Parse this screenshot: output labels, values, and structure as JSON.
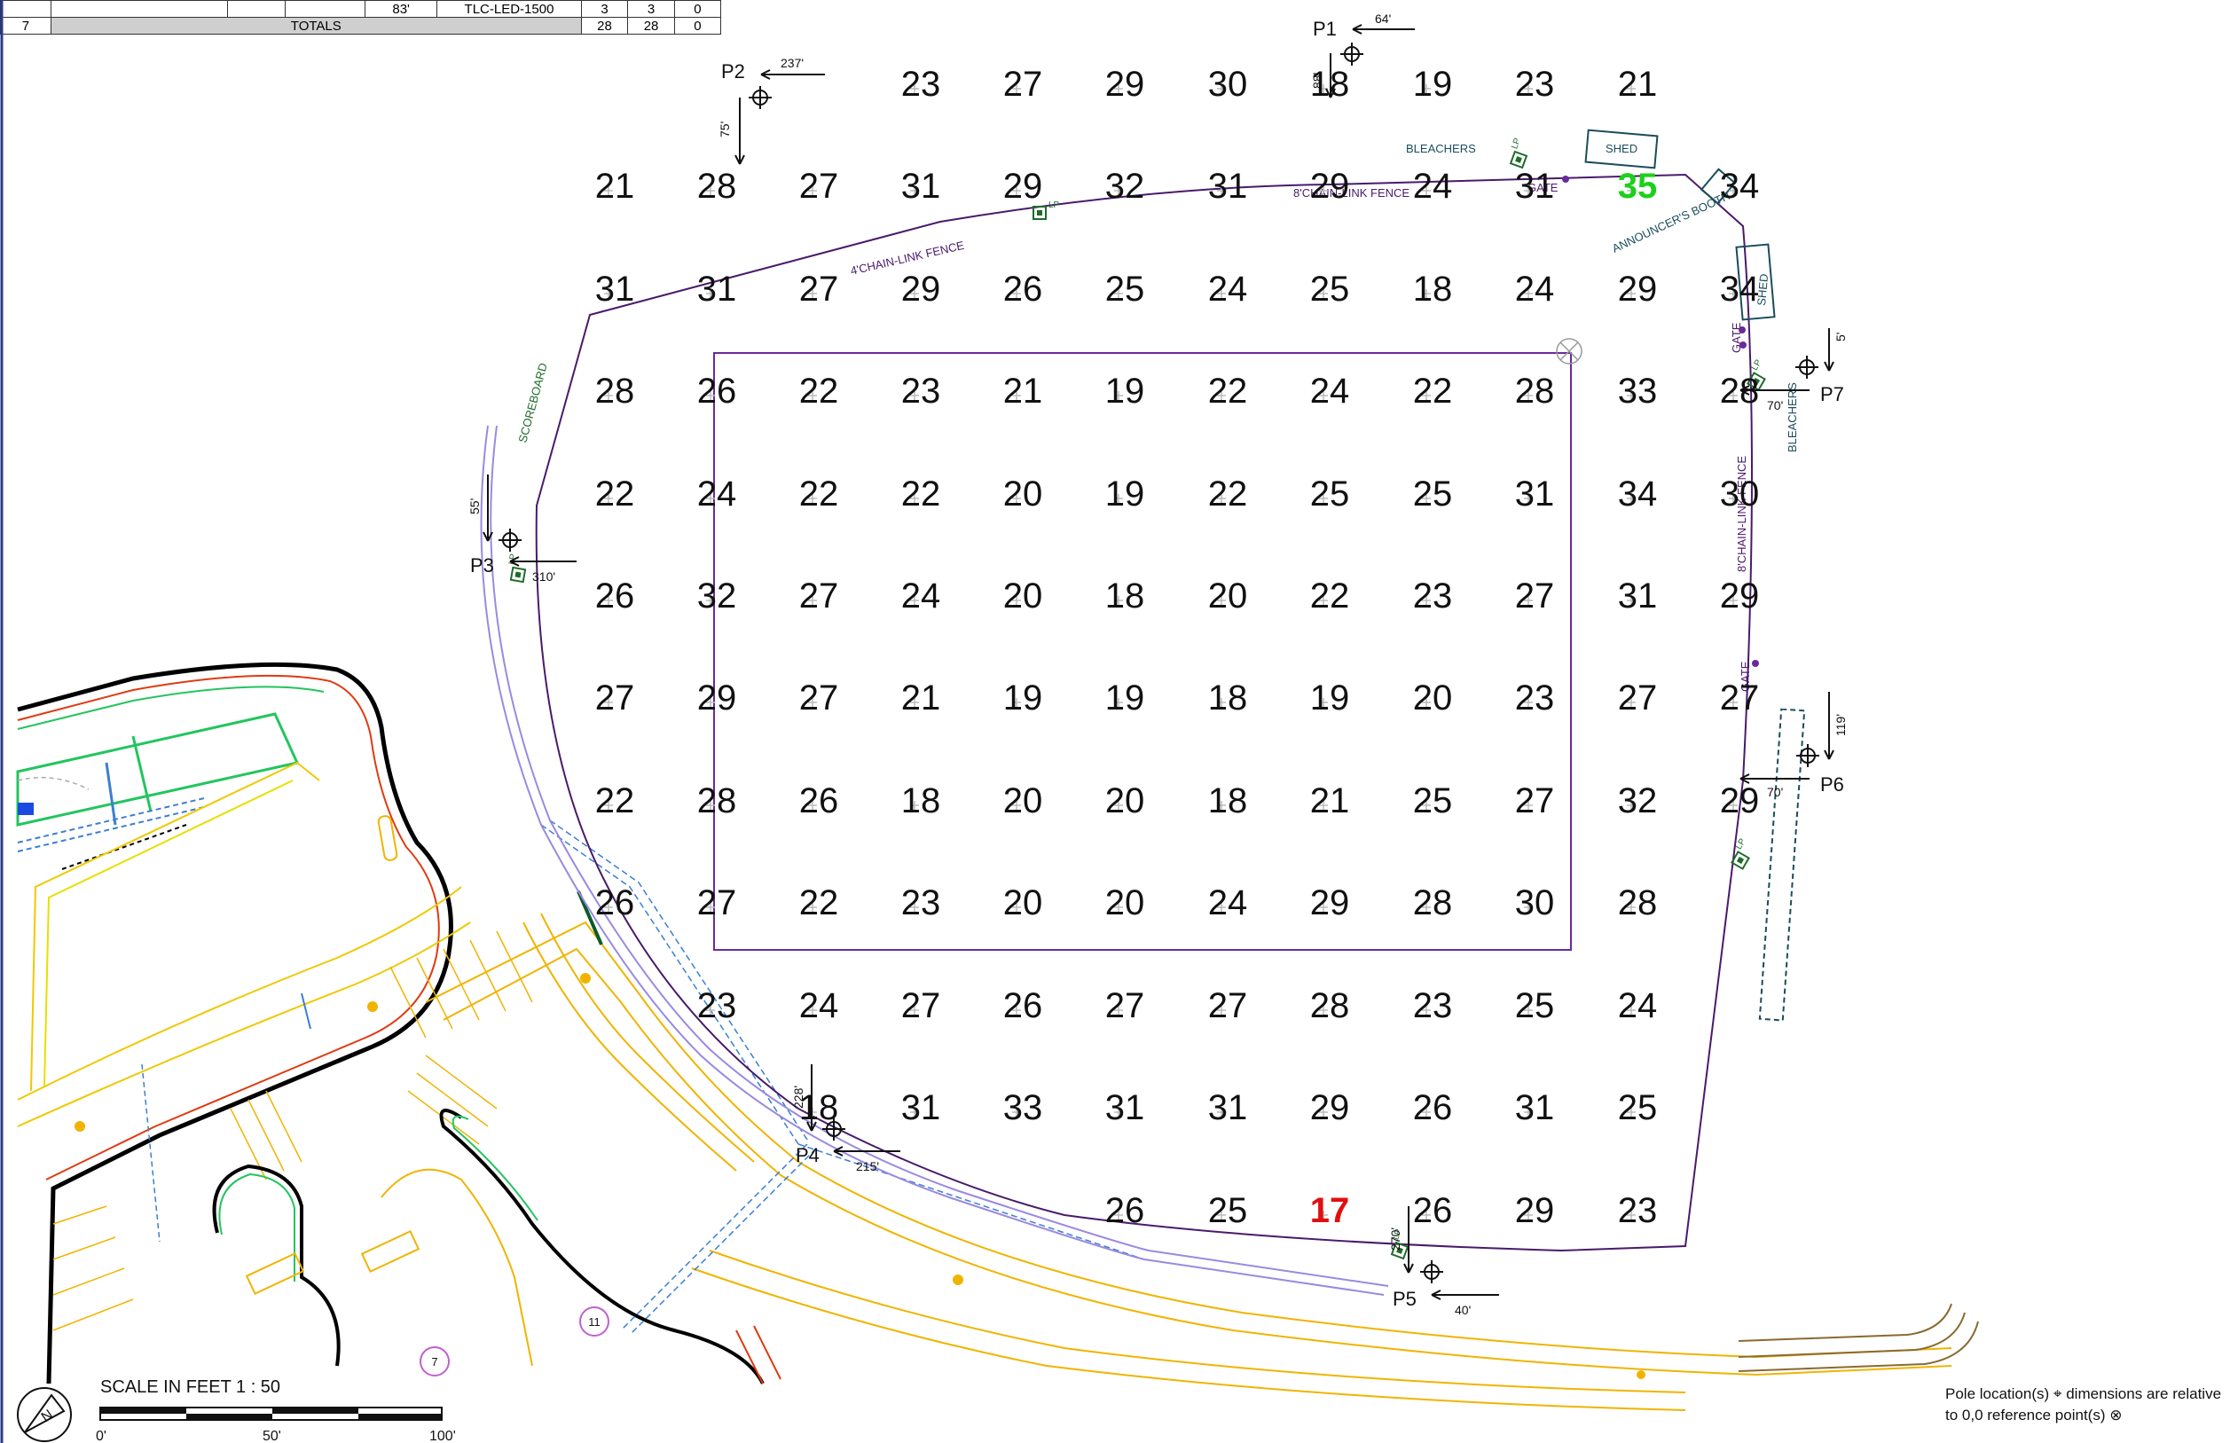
{
  "schedule_rows": [
    {
      "col0": "",
      "col1": "",
      "col2": "",
      "col3": "",
      "mounting": "83'",
      "fixture": "TLC-LED-1500",
      "a": "3",
      "b": "3",
      "c": "0"
    },
    {
      "col0": "7",
      "totals_label": "TOTALS",
      "a": "28",
      "b": "28",
      "c": "0"
    }
  ],
  "illuminance_grid": [
    {
      "row": 1,
      "values": [
        "23",
        "27",
        "29",
        "30",
        "18",
        "19",
        "23",
        "21"
      ]
    },
    {
      "row": 2,
      "values": [
        "21",
        "28",
        "27",
        "31",
        "29",
        "32",
        "31",
        "29",
        "24",
        "31",
        "35",
        "34"
      ]
    },
    {
      "row": 3,
      "values": [
        "31",
        "31",
        "27",
        "29",
        "26",
        "25",
        "24",
        "25",
        "18",
        "24",
        "29",
        "34"
      ]
    },
    {
      "row": 4,
      "values": [
        "28",
        "26",
        "22",
        "23",
        "21",
        "19",
        "22",
        "24",
        "22",
        "28",
        "33",
        "28"
      ]
    },
    {
      "row": 5,
      "values": [
        "22",
        "24",
        "22",
        "22",
        "20",
        "19",
        "22",
        "25",
        "25",
        "31",
        "34",
        "30"
      ]
    },
    {
      "row": 6,
      "values": [
        "26",
        "32",
        "27",
        "24",
        "20",
        "18",
        "20",
        "22",
        "23",
        "27",
        "31",
        "29"
      ]
    },
    {
      "row": 7,
      "values": [
        "27",
        "29",
        "27",
        "21",
        "19",
        "19",
        "18",
        "19",
        "20",
        "23",
        "27",
        "27"
      ]
    },
    {
      "row": 8,
      "values": [
        "22",
        "28",
        "26",
        "18",
        "20",
        "20",
        "18",
        "21",
        "25",
        "27",
        "32",
        "29"
      ]
    },
    {
      "row": 9,
      "values": [
        "26",
        "27",
        "22",
        "23",
        "20",
        "20",
        "24",
        "29",
        "28",
        "30",
        "28"
      ]
    },
    {
      "row": 10,
      "values": [
        "23",
        "24",
        "27",
        "26",
        "27",
        "27",
        "28",
        "23",
        "25",
        "24"
      ]
    },
    {
      "row": 11,
      "values": [
        "18",
        "31",
        "33",
        "31",
        "31",
        "29",
        "26",
        "31",
        "25"
      ]
    },
    {
      "row": 12,
      "values": [
        "26",
        "25",
        "17",
        "26",
        "29",
        "23"
      ]
    }
  ],
  "max_value": "35",
  "min_value": "17",
  "poles": [
    {
      "name": "P1",
      "dim_a": "64'",
      "dim_b": "88'"
    },
    {
      "name": "P2",
      "dim_a": "237'",
      "dim_b": "75'"
    },
    {
      "name": "P3",
      "dim_a": "55'",
      "dim_b": "310'"
    },
    {
      "name": "P4",
      "dim_a": "228'",
      "dim_b": "215'"
    },
    {
      "name": "P5",
      "dim_a": "270'",
      "dim_b": "40'"
    },
    {
      "name": "P6",
      "dim_a": "119'",
      "dim_b": "70'"
    },
    {
      "name": "P7",
      "dim_a": "5'",
      "dim_b": "70'"
    }
  ],
  "site_labels": {
    "bleachers_top": "BLEACHERS",
    "shed_top": "SHED",
    "gate_top": "GATE",
    "fence_top": "8'CHAIN-LINK FENCE",
    "fence_left": "4'CHAIN-LINK FENCE",
    "announcers_booth": "ANNOUNCER'S BOOTH",
    "shed_right": "SHED",
    "gate_right1": "GATE",
    "bleachers_right": "BLEACHERS",
    "fence_right": "8'CHAIN-LINK FENCE",
    "gate_right2": "GATE",
    "scoreboard": "SCOREBOARD",
    "lp": "LP",
    "badge_7": "7",
    "badge_11": "11"
  },
  "scale": {
    "title": "SCALE IN FEET 1 : 50",
    "tick0": "0'",
    "tick1": "50'",
    "tick2": "100'"
  },
  "legend": {
    "line1": "Pole location(s)",
    "line1b": "dimensions are relative",
    "line2": "to 0,0 reference point(s)"
  },
  "colors": {
    "field_outline": "#6a2a9a",
    "fence": "#4a1a6a",
    "path": "#9a8ae0",
    "road": "#f0b400",
    "building": "#22c55e",
    "high_value": "#1bd11b",
    "low_value": "#e01010"
  }
}
